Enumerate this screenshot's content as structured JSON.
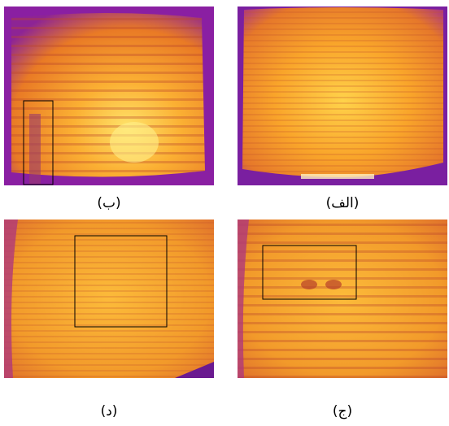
{
  "panels": [
    {
      "caption": "(ب)"
    },
    {
      "caption": "(الف)"
    },
    {
      "caption": "(د)"
    },
    {
      "caption": "(ج)"
    }
  ]
}
